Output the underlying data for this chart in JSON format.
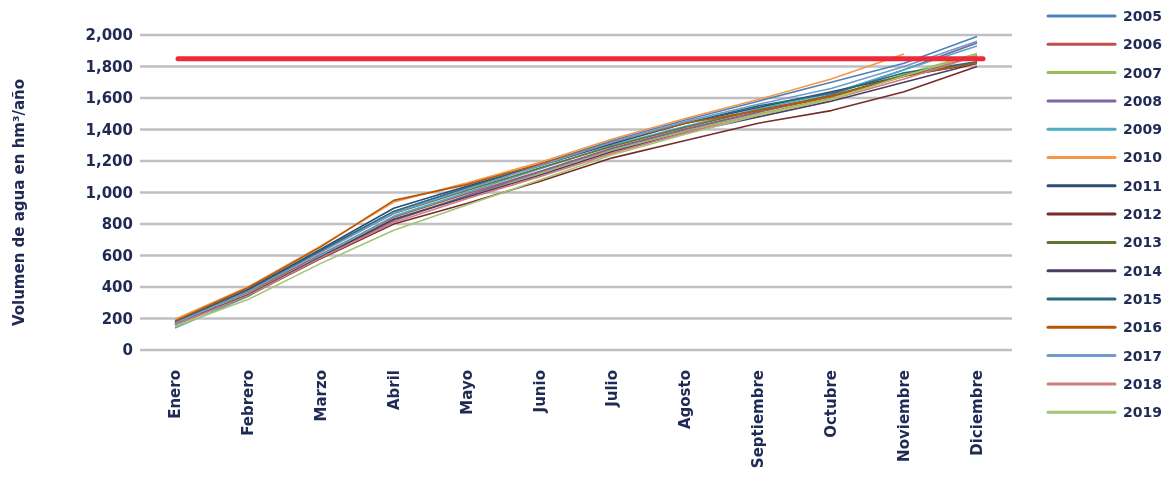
{
  "chart_data": {
    "type": "line",
    "ylabel": "Volumen de agua en hm³/año",
    "categories": [
      "Enero",
      "Febrero",
      "Marzo",
      "Abril",
      "Mayo",
      "Junio",
      "Julio",
      "Agosto",
      "Septiembre",
      "Octubre",
      "Noviembre",
      "Diciembre"
    ],
    "ylim": [
      0,
      2000
    ],
    "yticks": [
      {
        "value": 0,
        "label": "0"
      },
      {
        "value": 200,
        "label": "200"
      },
      {
        "value": 400,
        "label": "400"
      },
      {
        "value": 600,
        "label": "600"
      },
      {
        "value": 800,
        "label": "800"
      },
      {
        "value": 1000,
        "label": "1,000"
      },
      {
        "value": 1200,
        "label": "1,200"
      },
      {
        "value": 1400,
        "label": "1,400"
      },
      {
        "value": 1600,
        "label": "1,600"
      },
      {
        "value": 1800,
        "label": "1,800"
      },
      {
        "value": 2000,
        "label": "2,000"
      }
    ],
    "grid": "y",
    "legend": "right",
    "marker": "none",
    "line_style": "solid",
    "ref_lines": [
      {
        "axis": "y",
        "value": 1850,
        "color": "#ee2a3a"
      }
    ],
    "series": [
      {
        "name": "2005",
        "color": "#4f81bd",
        "values": [
          175,
          380,
          630,
          880,
          1030,
          1180,
          1330,
          1460,
          1580,
          1700,
          1820,
          1990
        ]
      },
      {
        "name": "2006",
        "color": "#c0504d",
        "values": [
          167,
          364,
          606,
          843,
          992,
          1133,
          1283,
          1403,
          1512,
          1606,
          1736,
          1872
        ]
      },
      {
        "name": "2007",
        "color": "#9bbb59",
        "values": [
          165,
          355,
          595,
          830,
          980,
          1120,
          1270,
          1390,
          1500,
          1600,
          1750,
          1882
        ]
      },
      {
        "name": "2008",
        "color": "#8064a2",
        "values": [
          160,
          350,
          590,
          820,
          980,
          1130,
          1280,
          1400,
          1510,
          1620,
          1780,
          1950
        ]
      },
      {
        "name": "2009",
        "color": "#4bacc6",
        "values": [
          140,
          340,
          600,
          850,
          1000,
          1150,
          1300,
          1420,
          1530,
          1630,
          1780,
          1930
        ]
      },
      {
        "name": "2010",
        "color": "#f79646",
        "values": [
          195,
          400,
          660,
          940,
          1060,
          1190,
          1340,
          1470,
          1590,
          1720,
          1880,
          null
        ]
      },
      {
        "name": "2011",
        "color": "#2c4d75",
        "values": [
          180,
          385,
          640,
          900,
          1040,
          1170,
          1310,
          1440,
          1540,
          1640,
          1740,
          1820
        ]
      },
      {
        "name": "2012",
        "color": "#772c2a",
        "values": [
          165,
          345,
          580,
          800,
          930,
          1070,
          1220,
          1330,
          1440,
          1520,
          1640,
          1800
        ]
      },
      {
        "name": "2013",
        "color": "#5f7530",
        "values": [
          173,
          372,
          623,
          866,
          1013,
          1155,
          1294,
          1414,
          1524,
          1614,
          1745,
          1826
        ]
      },
      {
        "name": "2014",
        "color": "#4d3b62",
        "values": [
          160,
          350,
          590,
          830,
          970,
          1110,
          1260,
          1380,
          1480,
          1580,
          1700,
          1820
        ]
      },
      {
        "name": "2015",
        "color": "#276a7c",
        "values": [
          175,
          375,
          630,
          880,
          1030,
          1170,
          1320,
          1440,
          1550,
          1630,
          1760,
          1830
        ]
      },
      {
        "name": "2016",
        "color": "#b65708",
        "values": [
          185,
          395,
          655,
          950,
          1050,
          1180,
          1320,
          1440,
          1520,
          1610,
          1740,
          1822
        ]
      },
      {
        "name": "2017",
        "color": "#729aca",
        "values": [
          170,
          370,
          620,
          870,
          1020,
          1170,
          1320,
          1450,
          1560,
          1660,
          1800,
          1960
        ]
      },
      {
        "name": "2018",
        "color": "#d07c7a",
        "values": [
          160,
          345,
          585,
          810,
          960,
          1100,
          1250,
          1380,
          1490,
          1590,
          1720,
          1868
        ]
      },
      {
        "name": "2019",
        "color": "#a5c475",
        "values": [
          150,
          320,
          550,
          760,
          920,
          1080,
          1240,
          1370,
          1490,
          1590,
          1740,
          1878
        ]
      }
    ]
  }
}
